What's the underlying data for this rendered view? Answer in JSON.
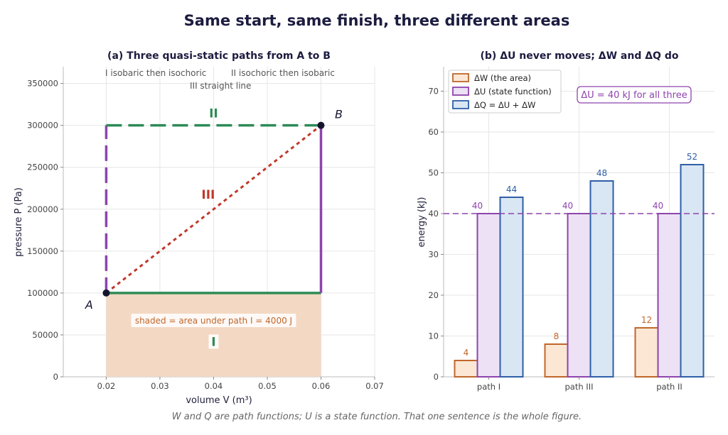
{
  "figure": {
    "title": "Same start, same finish, three different areas",
    "caption": "W and Q are path functions; U is a state function. That one sentence is the whole figure."
  },
  "colors": {
    "green": "#2e8b57",
    "purple": "#8e44ad",
    "red": "#c0392b",
    "orange": "#c0672a",
    "shade": "#f3d8c3",
    "blue": "#2f5fa8",
    "blue_fill": "#d9e6f4",
    "purple_fill": "#ece1f5",
    "orange_fill": "#fbe7d4",
    "point": "#15152e"
  },
  "chart_data": [
    {
      "type": "line",
      "title": "(a) Three quasi-static paths from A to B",
      "xlabel": "volume  V  (m³)",
      "ylabel": "pressure  P  (Pa)",
      "xlim": [
        0.012,
        0.07
      ],
      "ylim": [
        0,
        370000
      ],
      "xticks": [
        "0.02",
        "0.03",
        "0.04",
        "0.05",
        "0.06",
        "0.07"
      ],
      "yticks": [
        "0",
        "50000",
        "100000",
        "150000",
        "200000",
        "250000",
        "300000",
        "350000"
      ],
      "grid": true,
      "points": [
        {
          "label": "A",
          "x": 0.02,
          "y": 100000
        },
        {
          "label": "B",
          "x": 0.06,
          "y": 300000
        }
      ],
      "series": [
        {
          "name": "I",
          "description": "isobaric then isochoric",
          "x": [
            0.02,
            0.06,
            0.06
          ],
          "y": [
            100000,
            100000,
            300000
          ]
        },
        {
          "name": "II",
          "description": "isochoric then isobaric",
          "x": [
            0.02,
            0.02,
            0.06
          ],
          "y": [
            100000,
            300000,
            300000
          ]
        },
        {
          "name": "III",
          "description": "straight line",
          "x": [
            0.02,
            0.06
          ],
          "y": [
            100000,
            300000
          ]
        }
      ],
      "legend": {
        "I": "I  isobaric then isochoric",
        "II": "II  isochoric then isobaric",
        "III": "III  straight line"
      },
      "shaded_region": {
        "x": [
          0.02,
          0.06
        ],
        "y_top": 100000,
        "label": "shaded = area under path I = 4000 J"
      }
    },
    {
      "type": "bar",
      "title": "(b) ΔU never moves; ΔW and ΔQ do",
      "ylabel": "energy  (kJ)",
      "categories": [
        "path I",
        "path III",
        "path II"
      ],
      "ylim": [
        0,
        76
      ],
      "yticks": [
        "0",
        "10",
        "20",
        "30",
        "40",
        "50",
        "60",
        "70"
      ],
      "grid": true,
      "series": [
        {
          "name": "ΔW  (the area)",
          "values": [
            4,
            8,
            12
          ]
        },
        {
          "name": "ΔU  (state function)",
          "values": [
            40,
            40,
            40
          ]
        },
        {
          "name": "ΔQ = ΔU + ΔW",
          "values": [
            44,
            48,
            52
          ]
        }
      ],
      "reference_line": {
        "y": 40
      },
      "annotation": "ΔU = 40 kJ for all three",
      "legend_position": "top-left"
    }
  ]
}
